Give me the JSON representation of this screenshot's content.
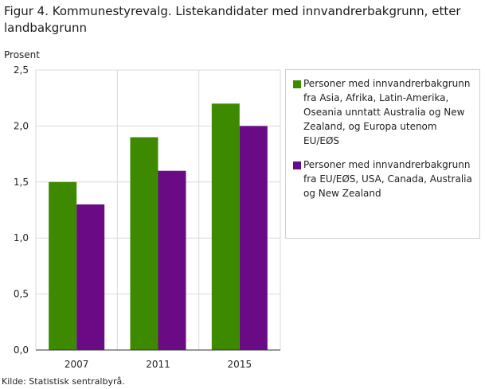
{
  "title": "Figur 4. Kommunestyrevalg. Listekandidater med innvandrerbakgrunn, etter landbakgrunn",
  "source": "Kilde: Statistisk sentralbyrå.",
  "colors": {
    "series1": "#3d8a00",
    "series2": "#6a0a85",
    "grid": "#d9d9d9",
    "axis": "#333333"
  },
  "chart_data": {
    "type": "bar",
    "title": "Figur 4. Kommunestyrevalg. Listekandidater med innvandrerbakgrunn, etter landbakgrunn",
    "ylabel": "Prosent",
    "xlabel": "",
    "categories": [
      "2007",
      "2011",
      "2015"
    ],
    "ylim": [
      0,
      2.5
    ],
    "yticks": [
      "0,0",
      "0,5",
      "1,0",
      "1,5",
      "2,0",
      "2,5"
    ],
    "grid": true,
    "legend_position": "right",
    "series": [
      {
        "name": "Personer med innvandrerbakgrunn fra Asia, Afrika, Latin-Amerika, Oseania unntatt Australia og New Zealand, og Europa utenom EU/EØS",
        "values": [
          1.5,
          1.9,
          2.2
        ]
      },
      {
        "name": "Personer med innvandrerbakgrunn fra EU/EØS, USA, Canada, Australia og New Zealand",
        "values": [
          1.3,
          1.6,
          2.0
        ]
      }
    ]
  }
}
